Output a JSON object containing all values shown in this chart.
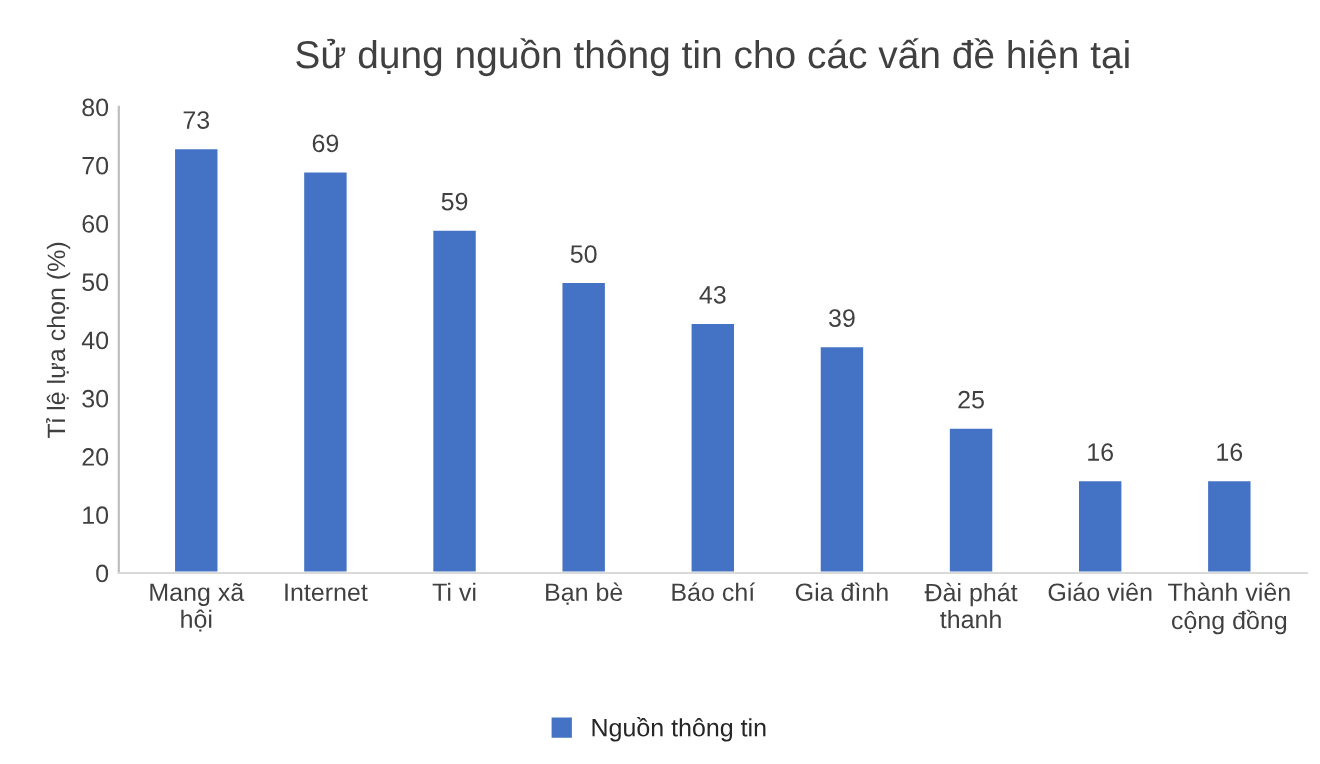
{
  "chart_data": {
    "type": "bar",
    "title": "Sử dụng nguồn thông tin cho các vấn đề hiện tại",
    "ylabel": "Tỉ lệ lựa chọn (%)",
    "categories": [
      "Mang xã hội",
      "Internet",
      "Ti vi",
      "Bạn bè",
      "Báo chí",
      "Gia đình",
      "Đài phát thanh",
      "Giáo viên",
      "Thành viên cộng đồng"
    ],
    "series": [
      {
        "name": "Nguồn thông tin",
        "color": "#4472c4",
        "values": [
          73,
          69,
          59,
          50,
          43,
          39,
          25,
          16,
          16
        ]
      }
    ],
    "ylim": [
      0,
      80
    ],
    "yticks": [
      0,
      10,
      20,
      30,
      40,
      50,
      60,
      70,
      80
    ],
    "data_labels": true,
    "legend": "bottom",
    "grid": false
  }
}
